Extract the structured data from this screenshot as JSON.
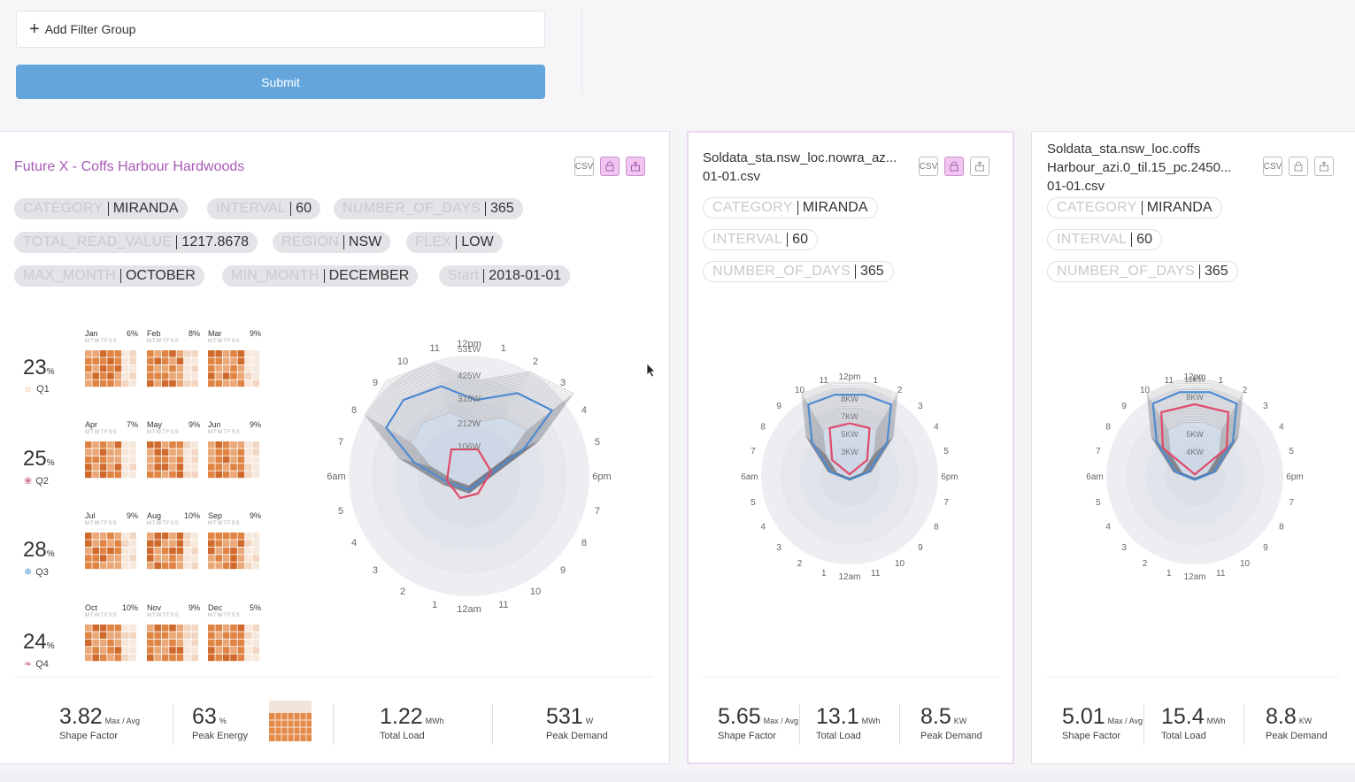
{
  "filter": {
    "add_group_label": "Add Filter Group",
    "submit_label": "Submit"
  },
  "colors": {
    "accent_purple": "#a65bb5",
    "submit_blue": "#64a6dc",
    "heat_orange": "#e07a3a"
  },
  "cards": [
    {
      "title": "Future X - Coffs Harbour Hardwoods",
      "icons": {
        "csv": "CSV",
        "lock": "lock-icon",
        "share": "share-icon"
      },
      "tags": [
        {
          "key": "CATEGORY",
          "value": "MIRANDA"
        },
        {
          "key": "INTERVAL",
          "value": "60"
        },
        {
          "key": "NUMBER_OF_DAYS",
          "value": "365"
        },
        {
          "key": "TOTAL_READ_VALUE",
          "value": "1217.8678"
        },
        {
          "key": "REGION",
          "value": "NSW"
        },
        {
          "key": "FLEX",
          "value": "LOW"
        },
        {
          "key": "MAX_MONTH",
          "value": "OCTOBER"
        },
        {
          "key": "MIN_MONTH",
          "value": "DECEMBER"
        },
        {
          "key": "Start",
          "value": "2018-01-01"
        }
      ],
      "quarters": [
        {
          "label": "Q1",
          "pct": "23",
          "months": [
            {
              "m": "Jan",
              "p": "6%"
            },
            {
              "m": "Feb",
              "p": "8%"
            },
            {
              "m": "Mar",
              "p": "9%"
            }
          ]
        },
        {
          "label": "Q2",
          "pct": "25",
          "months": [
            {
              "m": "Apr",
              "p": "7%"
            },
            {
              "m": "May",
              "p": "9%"
            },
            {
              "m": "Jun",
              "p": "9%"
            }
          ]
        },
        {
          "label": "Q3",
          "pct": "28",
          "months": [
            {
              "m": "Jul",
              "p": "9%"
            },
            {
              "m": "Aug",
              "p": "10%"
            },
            {
              "m": "Sep",
              "p": "9%"
            }
          ]
        },
        {
          "label": "Q4",
          "pct": "24",
          "months": [
            {
              "m": "Oct",
              "p": "10%"
            },
            {
              "m": "Nov",
              "p": "9%"
            },
            {
              "m": "Dec",
              "p": "5%"
            }
          ]
        }
      ],
      "weekdays": "MTWTFSS",
      "percent_sign": "%",
      "radial": {
        "top_label": "12pm",
        "bottom_label": "12am",
        "left_label": "6am",
        "right_label": "6pm",
        "ring_labels": [
          "531W",
          "425W",
          "318W",
          "212W",
          "106W"
        ]
      },
      "stats": {
        "shape_factor": {
          "value": "3.82",
          "unit": "Max / Avg",
          "label": "Shape Factor"
        },
        "peak_energy": {
          "value": "63",
          "unit": "%",
          "label": "Peak Energy"
        },
        "total_load": {
          "value": "1.22",
          "unit": "MWh",
          "label": "Total Load"
        },
        "peak_demand": {
          "value": "531",
          "unit": "W",
          "label": "Peak Demand"
        }
      }
    },
    {
      "title_line1": "Soldata_sta.nsw_loc.nowra_az...",
      "title_line2": "01-01.csv",
      "tags": [
        {
          "key": "CATEGORY",
          "value": "MIRANDA"
        },
        {
          "key": "INTERVAL",
          "value": "60"
        },
        {
          "key": "NUMBER_OF_DAYS",
          "value": "365"
        }
      ],
      "radial": {
        "top_label": "12pm",
        "bottom_label": "12am",
        "left_label": "6am",
        "right_label": "6pm",
        "ring_labels": [
          "8KW",
          "7KW",
          "5KW",
          "3KW"
        ]
      },
      "stats": {
        "shape_factor": {
          "value": "5.65",
          "unit": "Max / Avg",
          "label": "Shape Factor"
        },
        "total_load": {
          "value": "13.1",
          "unit": "MWh",
          "label": "Total Load"
        },
        "peak_demand": {
          "value": "8.5",
          "unit": "KW",
          "label": "Peak Demand"
        }
      }
    },
    {
      "title_line1": "Soldata_sta.nsw_loc.coffs",
      "title_line2": "Harbour_azi.0_til.15_pc.2450...",
      "title_line3": "01-01.csv",
      "tags": [
        {
          "key": "CATEGORY",
          "value": "MIRANDA"
        },
        {
          "key": "INTERVAL",
          "value": "60"
        },
        {
          "key": "NUMBER_OF_DAYS",
          "value": "365"
        }
      ],
      "radial": {
        "top_label": "12pm",
        "bottom_label": "12am",
        "left_label": "6am",
        "right_label": "6pm",
        "ring_labels": [
          "11KW",
          "8KW",
          "5KW",
          "4KW"
        ]
      },
      "stats": {
        "shape_factor": {
          "value": "5.01",
          "unit": "Max / Avg",
          "label": "Shape Factor"
        },
        "total_load": {
          "value": "15.4",
          "unit": "MWh",
          "label": "Total Load"
        },
        "peak_demand": {
          "value": "8.8",
          "unit": "KW",
          "label": "Peak Demand"
        }
      }
    }
  ]
}
